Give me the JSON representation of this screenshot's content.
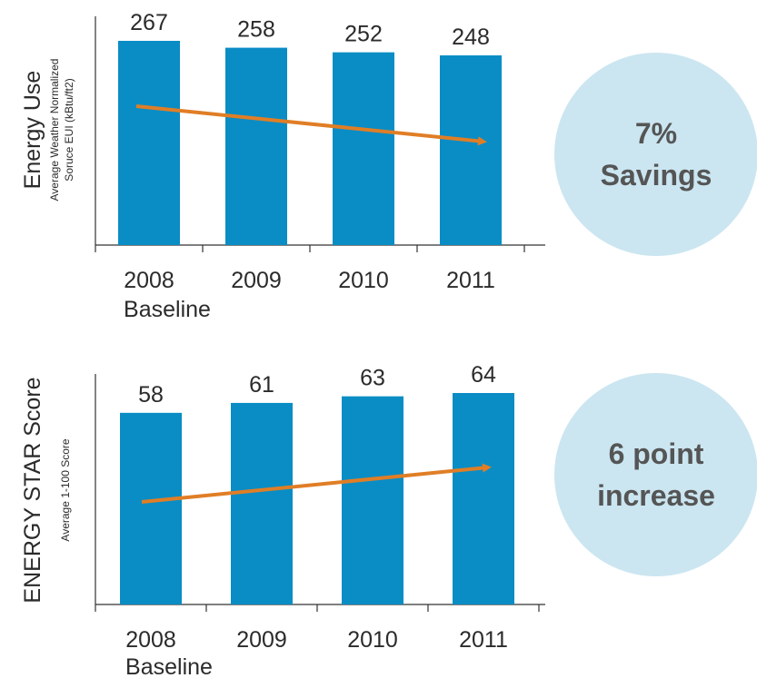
{
  "colors": {
    "bar": "#0A8DC5",
    "arrow": "#E07E26",
    "circle": "#CBE6F1",
    "axis": "#333333"
  },
  "chart_data": [
    {
      "type": "bar",
      "categories": [
        "2008",
        "2009",
        "2010",
        "2011"
      ],
      "category_sublabels": [
        "Baseline",
        "",
        "",
        ""
      ],
      "values": [
        267,
        258,
        252,
        248
      ],
      "ylabel": "Energy Use",
      "ylabel_sub": [
        "Average Weather Normalized",
        "Soruce EUI (kBtu/ft2)"
      ],
      "callout": [
        "7%",
        "Savings"
      ],
      "trend": "down"
    },
    {
      "type": "bar",
      "categories": [
        "2008",
        "2009",
        "2010",
        "2011"
      ],
      "category_sublabels": [
        "Baseline",
        "",
        "",
        ""
      ],
      "values": [
        58,
        61,
        63,
        64
      ],
      "ylabel": "ENERGY STAR Score",
      "ylabel_sub": [
        "Average 1-100 Score"
      ],
      "callout": [
        "6 point",
        "increase"
      ],
      "trend": "up"
    }
  ]
}
